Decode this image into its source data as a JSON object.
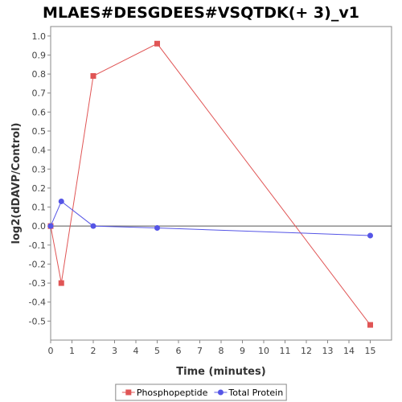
{
  "chart_data": {
    "type": "line",
    "title": "MLAES#DESGDEES#VSQTDK(+ 3)_v1",
    "xlabel": "Time (minutes)",
    "ylabel": "log2(dDAVP/Control)",
    "xlim": [
      0,
      16
    ],
    "ylim": [
      -0.6,
      1.05
    ],
    "x_ticks": [
      0,
      1,
      2,
      3,
      4,
      5,
      6,
      7,
      8,
      9,
      10,
      11,
      12,
      13,
      14,
      15
    ],
    "y_ticks": [
      1.0,
      0.9,
      0.8,
      0.7,
      0.6,
      0.5,
      0.4,
      0.3,
      0.2,
      0.1,
      0.0,
      -0.1,
      -0.2,
      -0.3,
      -0.4,
      -0.5
    ],
    "y_tick_labels": [
      "1.0",
      "0.9",
      "0.8",
      "0.7",
      "0.6",
      "0.5",
      "0.4",
      "0.3",
      "0.2",
      "0.1",
      "0.0",
      "-0.1",
      "-0.2",
      "-0.3",
      "-0.4",
      "-0.5"
    ],
    "grid": false,
    "zero_line": true,
    "legend_position": "bottom",
    "series": [
      {
        "name": "Phosphopeptide",
        "color": "#e05555",
        "marker": "square",
        "x": [
          0,
          0.5,
          2,
          5,
          15
        ],
        "y": [
          0.0,
          -0.3,
          0.79,
          0.96,
          -0.52
        ]
      },
      {
        "name": "Total Protein",
        "color": "#5555e6",
        "marker": "circle",
        "x": [
          0,
          0.5,
          2,
          5,
          15
        ],
        "y": [
          0.0,
          0.13,
          0.0,
          -0.01,
          -0.05
        ]
      }
    ]
  }
}
